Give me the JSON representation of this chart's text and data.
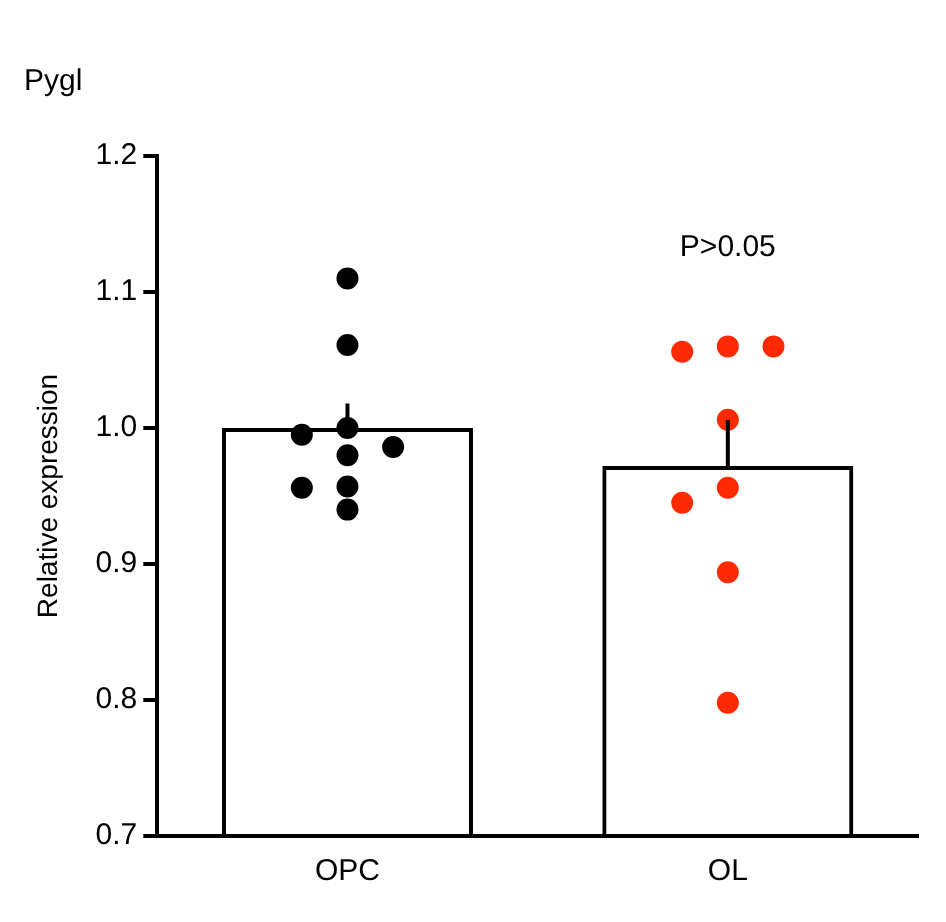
{
  "chart_data": {
    "type": "bar",
    "title": "Pygl",
    "ylabel": "Relative expression",
    "categories": [
      "OPC",
      "OL"
    ],
    "series": [
      {
        "color": "#000000",
        "values": [
          1.0,
          0.972
        ],
        "errors": [
          [
            1.0,
            1.018
          ],
          [
            0.972,
            1.006
          ]
        ]
      },
      {
        "type": "scatter",
        "color": "#000000",
        "x": [
          "OPC",
          "OPC",
          "OPC",
          "OPC",
          "OPC",
          "OPC",
          "OPC",
          "OPC",
          "OPC"
        ],
        "values": [
          1.11,
          1.061,
          1.0,
          0.995,
          0.986,
          0.98,
          0.957,
          0.956,
          0.94
        ]
      },
      {
        "type": "scatter",
        "color": "#ff2a00",
        "x": [
          "OL",
          "OL",
          "OL",
          "OL",
          "OL",
          "OL",
          "OL",
          "OL"
        ],
        "values": [
          1.06,
          1.056,
          1.06,
          1.006,
          0.956,
          0.945,
          0.894,
          0.798
        ]
      }
    ],
    "ylim": [
      0.7,
      1.2
    ],
    "yticks": [
      0.7,
      0.8,
      0.9,
      {
        "value": 1,
        "label": "1.0"
      },
      1.1,
      1.2
    ],
    "annotations": [
      "P>0.05"
    ],
    "grid": false,
    "legend": false,
    "marker": "circle"
  }
}
